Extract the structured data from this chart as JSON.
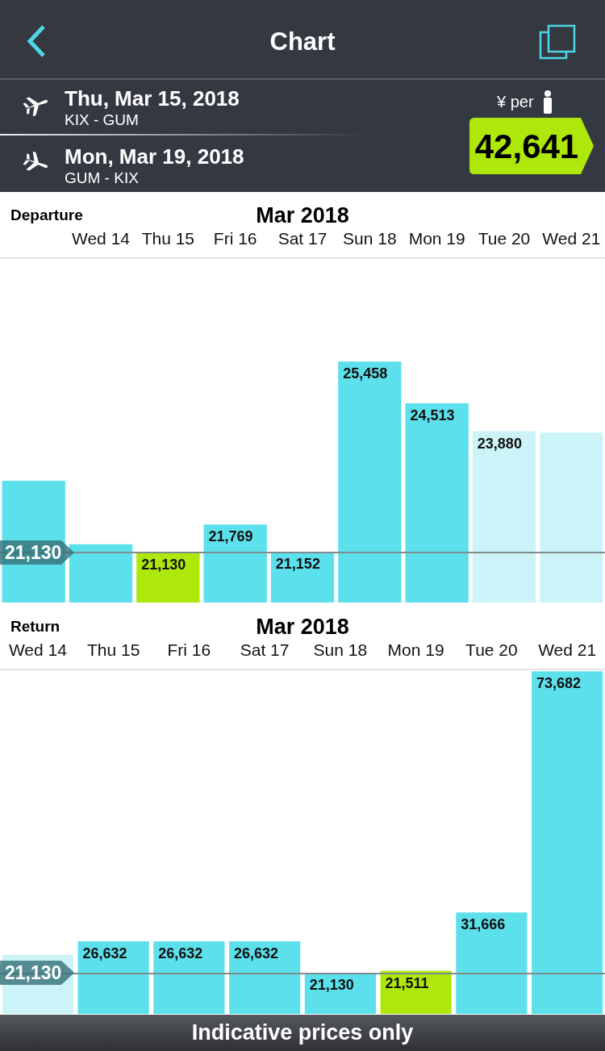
{
  "chart_data": [
    {
      "type": "bar",
      "title": "Departure",
      "subtitle": "Mar 2018",
      "annotations": [
        "Chart",
        "Thu, Mar 15, 2018",
        "KIX - GUM",
        "Mon, Mar 19, 2018",
        "GUM - KIX",
        "¥ per",
        "42,641"
      ],
      "categories": [
        null,
        "Wed 14",
        "Thu 15",
        "Fri 16",
        "Sat 17",
        "Sun 18",
        "Mon 19",
        "Tue 20",
        "Wed 21"
      ],
      "values": [
        22760,
        21320,
        21130,
        21769,
        21152,
        25458,
        24513,
        23880,
        23850
      ],
      "colors": [
        "#5ce0ec",
        "#5ce0ec",
        "#aee80a",
        "#5ce0ec",
        "#5ce0ec",
        "#5ce0ec",
        "#5ce0ec",
        "#ccf4f8",
        "#ccf4f8"
      ],
      "value_labels": [
        null,
        null,
        "21,130",
        "21,769",
        "21,152",
        "25,458",
        "24,513",
        "23,880",
        null
      ],
      "ylim": [
        20000,
        27800
      ],
      "tick_labels": "x",
      "ref_lines": [
        {
          "axis": "y",
          "value": 21130,
          "label": "21,130",
          "color": "#7f8c8d"
        }
      ]
    },
    {
      "type": "bar",
      "title": "Return",
      "subtitle": "Mar 2018",
      "annotations": [
        "Indicative prices only"
      ],
      "categories": [
        "Wed 14",
        "Thu 15",
        "Fri 16",
        "Sat 17",
        "Sun 18",
        "Mon 19",
        "Tue 20",
        "Wed 21"
      ],
      "values": [
        24300,
        26632,
        26632,
        26632,
        21130,
        21511,
        31666,
        73682
      ],
      "colors": [
        "#ccf4f8",
        "#5ce0ec",
        "#5ce0ec",
        "#5ce0ec",
        "#5ce0ec",
        "#aee80a",
        "#5ce0ec",
        "#5ce0ec"
      ],
      "value_labels": [
        null,
        "26,632",
        "26,632",
        "26,632",
        "21,130",
        "21,511",
        "31,666",
        "73,682"
      ],
      "ylim": [
        14000,
        74000
      ],
      "tick_labels": "x",
      "ref_lines": [
        {
          "axis": "y",
          "value": 21130,
          "label": "21,130",
          "color": "#7f8c8d"
        }
      ]
    }
  ]
}
